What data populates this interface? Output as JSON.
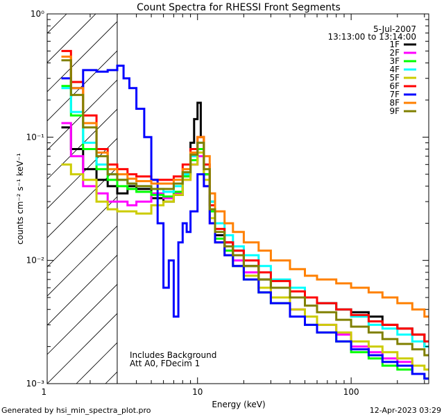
{
  "chart_data": {
    "type": "line",
    "title": "Count Spectra for RHESSI Front Segments",
    "xlabel": "Energy (keV)",
    "ylabel": "counts cm⁻² s⁻¹ keV⁻¹",
    "xscale": "log",
    "yscale": "log",
    "xlim": [
      1.05,
      320
    ],
    "ylim": [
      0.001,
      1.0
    ],
    "x_tick_labels": [
      {
        "value": 1,
        "label": "1"
      },
      {
        "value": 10,
        "label": "10"
      },
      {
        "value": 100,
        "label": "100"
      }
    ],
    "y_tick_labels": [
      {
        "value": 1,
        "label": "10⁰"
      },
      {
        "value": 0.1,
        "label": "10⁻¹"
      },
      {
        "value": 0.01,
        "label": "10⁻²"
      },
      {
        "value": 0.001,
        "label": "10⁻³"
      }
    ],
    "hatched_region": {
      "x_from": 1.05,
      "x_to": 3.0
    },
    "legend": {
      "position": "top-right",
      "date": "5-Jul-2007",
      "time_range": "13:13:00 to 13:14:00"
    },
    "annotations": [
      "Includes Background",
      "Att A0, FDecim 1"
    ],
    "series": [
      {
        "name": "1F",
        "color": "#000000",
        "x": [
          1.3,
          1.5,
          1.8,
          2.2,
          2.6,
          3,
          3.5,
          4,
          5,
          6,
          7,
          8,
          9,
          9.5,
          10,
          10.5,
          11,
          12,
          13,
          15,
          17,
          20,
          25,
          30,
          40,
          50,
          60,
          80,
          100,
          130,
          160,
          200,
          250,
          300
        ],
        "y": [
          0.12,
          0.08,
          0.055,
          0.045,
          0.04,
          0.035,
          0.04,
          0.038,
          0.032,
          0.03,
          0.034,
          0.05,
          0.09,
          0.14,
          0.19,
          0.1,
          0.05,
          0.03,
          0.016,
          0.014,
          0.012,
          0.009,
          0.007,
          0.006,
          0.005,
          0.005,
          0.0045,
          0.004,
          0.0038,
          0.0035,
          0.003,
          0.0028,
          0.0025,
          0.002
        ]
      },
      {
        "name": "2F",
        "color": "#ff00ff",
        "x": [
          1.3,
          1.5,
          1.8,
          2.2,
          2.6,
          3,
          3.5,
          4,
          5,
          6,
          7,
          8,
          9,
          10,
          11,
          12,
          13,
          15,
          17,
          20,
          25,
          30,
          40,
          50,
          60,
          80,
          100,
          130,
          160,
          200,
          250,
          300
        ],
        "y": [
          0.13,
          0.07,
          0.04,
          0.035,
          0.03,
          0.03,
          0.028,
          0.03,
          0.035,
          0.032,
          0.035,
          0.045,
          0.06,
          0.07,
          0.04,
          0.02,
          0.014,
          0.012,
          0.01,
          0.008,
          0.006,
          0.005,
          0.004,
          0.0035,
          0.003,
          0.0025,
          0.002,
          0.0018,
          0.0016,
          0.0015,
          0.0012,
          0.0011
        ]
      },
      {
        "name": "3F",
        "color": "#00ff00",
        "x": [
          1.3,
          1.5,
          1.8,
          2.2,
          2.6,
          3,
          3.5,
          4,
          5,
          6,
          7,
          8,
          9,
          10,
          11,
          12,
          13,
          15,
          17,
          20,
          25,
          30,
          40,
          50,
          60,
          80,
          100,
          130,
          160,
          200,
          250,
          300
        ],
        "y": [
          0.26,
          0.15,
          0.08,
          0.055,
          0.045,
          0.04,
          0.038,
          0.036,
          0.034,
          0.033,
          0.036,
          0.048,
          0.065,
          0.08,
          0.05,
          0.025,
          0.015,
          0.012,
          0.009,
          0.007,
          0.0055,
          0.0045,
          0.0035,
          0.003,
          0.0026,
          0.0022,
          0.0018,
          0.0016,
          0.0014,
          0.0013,
          0.0012,
          0.0011
        ]
      },
      {
        "name": "4F",
        "color": "#00ffff",
        "x": [
          1.3,
          1.5,
          1.8,
          2.2,
          2.6,
          3,
          3.5,
          4,
          5,
          6,
          7,
          8,
          9,
          10,
          11,
          12,
          13,
          15,
          17,
          20,
          25,
          30,
          40,
          50,
          60,
          80,
          100,
          130,
          160,
          200,
          250,
          300
        ],
        "y": [
          0.25,
          0.16,
          0.09,
          0.06,
          0.05,
          0.045,
          0.042,
          0.04,
          0.038,
          0.036,
          0.04,
          0.05,
          0.07,
          0.09,
          0.06,
          0.03,
          0.02,
          0.016,
          0.013,
          0.011,
          0.009,
          0.007,
          0.006,
          0.005,
          0.0045,
          0.004,
          0.0035,
          0.003,
          0.0028,
          0.0025,
          0.0022,
          0.002
        ]
      },
      {
        "name": "5F",
        "color": "#cccc00",
        "x": [
          1.3,
          1.5,
          1.8,
          2.2,
          2.6,
          3,
          3.5,
          4,
          5,
          6,
          7,
          8,
          9,
          10,
          11,
          12,
          13,
          15,
          17,
          20,
          25,
          30,
          40,
          50,
          60,
          80,
          100,
          130,
          160,
          200,
          250,
          300
        ],
        "y": [
          0.06,
          0.05,
          0.045,
          0.03,
          0.026,
          0.025,
          0.025,
          0.024,
          0.028,
          0.03,
          0.034,
          0.045,
          0.06,
          0.075,
          0.045,
          0.022,
          0.014,
          0.011,
          0.009,
          0.0075,
          0.006,
          0.005,
          0.004,
          0.0035,
          0.003,
          0.0026,
          0.0022,
          0.002,
          0.0018,
          0.0016,
          0.0014,
          0.0013
        ]
      },
      {
        "name": "6F",
        "color": "#ff0000",
        "x": [
          1.3,
          1.5,
          1.8,
          2.2,
          2.6,
          3,
          3.5,
          4,
          5,
          6,
          7,
          8,
          9,
          10,
          11,
          12,
          13,
          15,
          17,
          20,
          25,
          30,
          40,
          50,
          60,
          80,
          100,
          130,
          160,
          200,
          250,
          300
        ],
        "y": [
          0.5,
          0.28,
          0.15,
          0.08,
          0.06,
          0.055,
          0.05,
          0.048,
          0.045,
          0.045,
          0.048,
          0.06,
          0.08,
          0.1,
          0.06,
          0.028,
          0.018,
          0.014,
          0.012,
          0.01,
          0.008,
          0.0068,
          0.0056,
          0.005,
          0.0045,
          0.004,
          0.0036,
          0.0032,
          0.003,
          0.0028,
          0.0025,
          0.0022
        ]
      },
      {
        "name": "7F",
        "color": "#0000ff",
        "x": [
          1.3,
          1.5,
          1.8,
          2.2,
          2.6,
          3,
          3.3,
          3.6,
          4,
          4.5,
          5,
          5.5,
          6,
          6.5,
          7,
          7.5,
          8,
          8.5,
          9,
          10,
          11,
          12,
          13,
          15,
          17,
          20,
          25,
          30,
          40,
          50,
          60,
          80,
          100,
          130,
          160,
          200,
          250,
          300
        ],
        "y": [
          0.3,
          0.25,
          0.35,
          0.34,
          0.35,
          0.38,
          0.3,
          0.25,
          0.17,
          0.1,
          0.045,
          0.02,
          0.006,
          0.01,
          0.0035,
          0.014,
          0.02,
          0.017,
          0.025,
          0.05,
          0.04,
          0.02,
          0.014,
          0.011,
          0.009,
          0.007,
          0.0055,
          0.0045,
          0.0035,
          0.003,
          0.0026,
          0.0022,
          0.0019,
          0.0017,
          0.0015,
          0.0014,
          0.0012,
          0.0011
        ]
      },
      {
        "name": "8F",
        "color": "#ff8000",
        "x": [
          1.3,
          1.5,
          1.8,
          2.2,
          2.6,
          3,
          3.5,
          4,
          5,
          6,
          7,
          8,
          9,
          10,
          11,
          12,
          13,
          15,
          17,
          20,
          25,
          30,
          40,
          50,
          60,
          80,
          100,
          130,
          160,
          200,
          250,
          300
        ],
        "y": [
          0.45,
          0.25,
          0.13,
          0.075,
          0.055,
          0.05,
          0.046,
          0.044,
          0.042,
          0.042,
          0.045,
          0.055,
          0.075,
          0.1,
          0.07,
          0.035,
          0.025,
          0.02,
          0.017,
          0.014,
          0.012,
          0.01,
          0.0085,
          0.0075,
          0.007,
          0.0065,
          0.006,
          0.0055,
          0.005,
          0.0045,
          0.004,
          0.0035
        ]
      },
      {
        "name": "9F",
        "color": "#808000",
        "x": [
          1.3,
          1.5,
          1.8,
          2.2,
          2.6,
          3,
          3.5,
          4,
          5,
          6,
          7,
          8,
          9,
          10,
          11,
          12,
          13,
          15,
          17,
          20,
          25,
          30,
          40,
          50,
          60,
          80,
          100,
          130,
          160,
          200,
          250,
          300
        ],
        "y": [
          0.42,
          0.22,
          0.12,
          0.07,
          0.05,
          0.045,
          0.042,
          0.04,
          0.038,
          0.038,
          0.042,
          0.052,
          0.072,
          0.09,
          0.055,
          0.026,
          0.017,
          0.013,
          0.011,
          0.009,
          0.007,
          0.006,
          0.005,
          0.0043,
          0.0038,
          0.0033,
          0.0029,
          0.0026,
          0.0023,
          0.0021,
          0.0019,
          0.0017
        ]
      }
    ]
  },
  "footer": {
    "left": "Generated by hsi_min_spectra_plot.pro",
    "right": "12-Apr-2023 03:29"
  }
}
